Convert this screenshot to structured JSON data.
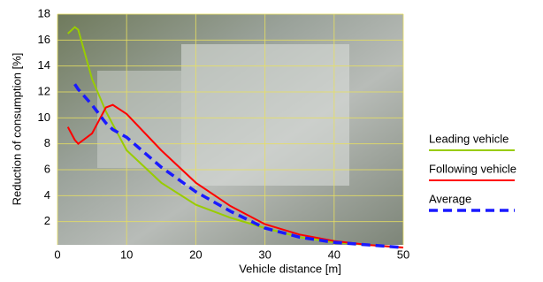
{
  "chart_data": {
    "type": "line",
    "x_label": "Vehicle distance [m]",
    "y_label": "Reduction of consumption [%]",
    "x": [
      1.5,
      2.5,
      3,
      5,
      7,
      8,
      10,
      15,
      20,
      25,
      30,
      35,
      40,
      45,
      50
    ],
    "series": [
      {
        "name": "Leading vehicle",
        "color": "#99cc00",
        "dashed": false,
        "values": [
          16.5,
          17,
          16.8,
          13,
          10.5,
          9.5,
          7.5,
          5,
          3.3,
          2.3,
          1.5,
          0.8,
          0.4,
          0.2,
          0
        ]
      },
      {
        "name": "Following vehicle",
        "color": "#ff0000",
        "dashed": false,
        "values": [
          9.3,
          8.3,
          8.0,
          8.8,
          10.8,
          11,
          10.3,
          7.5,
          5,
          3.2,
          1.8,
          1,
          0.5,
          0.2,
          0
        ]
      },
      {
        "name": "Average",
        "color": "#1a1aff",
        "dashed": true,
        "values": [
          null,
          12.6,
          12.2,
          11,
          9.6,
          9.1,
          8.5,
          6.2,
          4.3,
          2.8,
          1.5,
          0.8,
          0.4,
          0.2,
          0
        ]
      }
    ],
    "xlim": [
      0,
      50
    ],
    "xticks": [
      0,
      10,
      20,
      30,
      40,
      50
    ],
    "ylim": [
      0,
      18
    ],
    "yticks": [
      2,
      4,
      6,
      8,
      10,
      12,
      14,
      16,
      18
    ],
    "grid": true,
    "legend": "right"
  }
}
